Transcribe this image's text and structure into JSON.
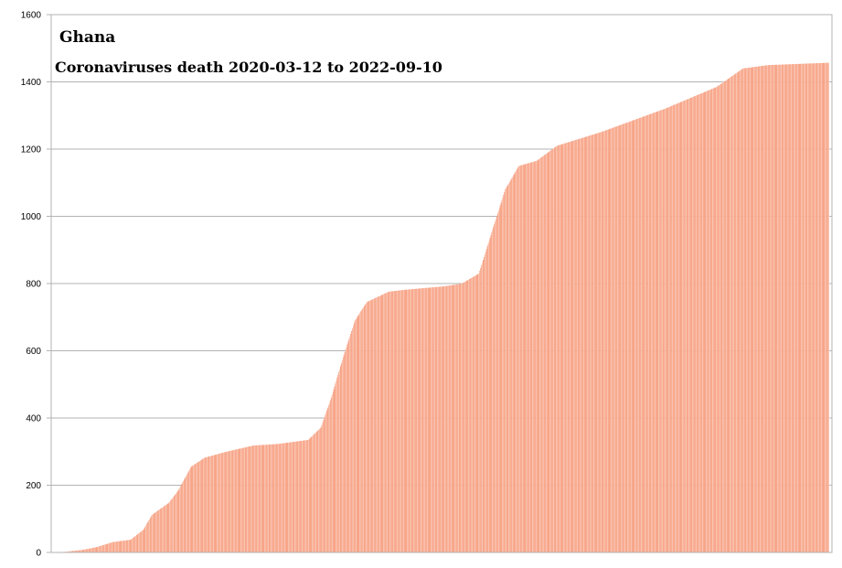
{
  "chart_data": {
    "type": "bar",
    "title": "Ghana",
    "subtitle": "Coronaviruses death 2020-03-12 to 2022-09-10",
    "xlabel": "",
    "ylabel": "",
    "start_date": "2020-03-12",
    "end_date": "2022-09-10",
    "ylim": [
      0,
      1600
    ],
    "yticks": [
      "0",
      "200",
      "400",
      "600",
      "800",
      "1000",
      "1200",
      "1400",
      "1600"
    ],
    "grid": true,
    "legend": "none",
    "bar_color": "#f7a487",
    "bar_edge_color": "#ffffff",
    "series": [
      {
        "points": [
          [
            "2020-03-12",
            0
          ],
          [
            "2020-03-25",
            2
          ],
          [
            "2020-04-15",
            8
          ],
          [
            "2020-05-01",
            16
          ],
          [
            "2020-05-20",
            31
          ],
          [
            "2020-06-10",
            38
          ],
          [
            "2020-06-25",
            68
          ],
          [
            "2020-07-05",
            112
          ],
          [
            "2020-07-25",
            148
          ],
          [
            "2020-08-05",
            185
          ],
          [
            "2020-08-20",
            255
          ],
          [
            "2020-09-05",
            282
          ],
          [
            "2020-10-01",
            300
          ],
          [
            "2020-11-01",
            318
          ],
          [
            "2020-12-01",
            323
          ],
          [
            "2021-01-05",
            335
          ],
          [
            "2021-01-20",
            372
          ],
          [
            "2021-02-01",
            460
          ],
          [
            "2021-02-15",
            580
          ],
          [
            "2021-03-01",
            690
          ],
          [
            "2021-03-15",
            745
          ],
          [
            "2021-04-10",
            776
          ],
          [
            "2021-05-01",
            782
          ],
          [
            "2021-06-15",
            792
          ],
          [
            "2021-07-05",
            800
          ],
          [
            "2021-07-25",
            830
          ],
          [
            "2021-08-10",
            960
          ],
          [
            "2021-08-25",
            1080
          ],
          [
            "2021-09-10",
            1150
          ],
          [
            "2021-10-01",
            1165
          ],
          [
            "2021-10-25",
            1210
          ],
          [
            "2021-12-15",
            1250
          ],
          [
            "2022-03-01",
            1320
          ],
          [
            "2022-05-01",
            1385
          ],
          [
            "2022-06-01",
            1440
          ],
          [
            "2022-07-01",
            1450
          ],
          [
            "2022-09-10",
            1457
          ]
        ]
      }
    ]
  }
}
